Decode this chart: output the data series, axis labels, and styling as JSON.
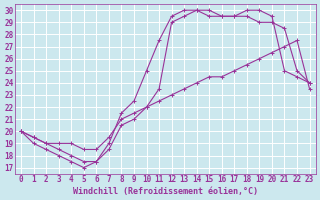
{
  "background_color": "#cce8ee",
  "grid_color": "#ffffff",
  "line_color": "#993399",
  "xlabel": "Windchill (Refroidissement éolien,°C)",
  "xlim": [
    -0.5,
    23.5
  ],
  "ylim": [
    16.5,
    30.5
  ],
  "xticks": [
    0,
    1,
    2,
    3,
    4,
    5,
    6,
    7,
    8,
    9,
    10,
    11,
    12,
    13,
    14,
    15,
    16,
    17,
    18,
    19,
    20,
    21,
    22,
    23
  ],
  "yticks": [
    17,
    18,
    19,
    20,
    21,
    22,
    23,
    24,
    25,
    26,
    27,
    28,
    29,
    30
  ],
  "line1_x": [
    0,
    1,
    2,
    3,
    4,
    5,
    6,
    7,
    8,
    9,
    10,
    11,
    12,
    13,
    14,
    15,
    16,
    17,
    18,
    19,
    20,
    21,
    22,
    23
  ],
  "line1_y": [
    20.0,
    19.5,
    19.0,
    19.0,
    19.0,
    18.5,
    18.5,
    19.5,
    21.0,
    21.5,
    22.0,
    22.5,
    23.0,
    23.5,
    24.0,
    24.5,
    24.5,
    25.0,
    25.5,
    26.0,
    26.5,
    27.0,
    27.5,
    23.5
  ],
  "line2_x": [
    0,
    1,
    2,
    3,
    4,
    5,
    6,
    7,
    8,
    9,
    10,
    11,
    12,
    13,
    14,
    15,
    16,
    17,
    18,
    19,
    20,
    21,
    22,
    23
  ],
  "line2_y": [
    20.0,
    19.5,
    19.0,
    18.5,
    18.0,
    17.5,
    17.5,
    18.5,
    20.5,
    21.0,
    22.0,
    23.5,
    29.0,
    29.5,
    30.0,
    30.0,
    29.5,
    29.5,
    29.5,
    29.0,
    29.0,
    28.5,
    25.0,
    24.0
  ],
  "line3_x": [
    0,
    1,
    2,
    3,
    4,
    5,
    6,
    7,
    8,
    9,
    10,
    11,
    12,
    13,
    14,
    15,
    16,
    17,
    18,
    19,
    20,
    21,
    22,
    23
  ],
  "line3_y": [
    20.0,
    19.0,
    18.5,
    18.0,
    17.5,
    17.0,
    17.5,
    19.0,
    21.5,
    22.5,
    25.0,
    27.5,
    29.5,
    30.0,
    30.0,
    29.5,
    29.5,
    29.5,
    30.0,
    30.0,
    29.5,
    25.0,
    24.5,
    24.0
  ],
  "font_color": "#993399",
  "tick_fontsize": 5.5,
  "xlabel_fontsize": 6.0
}
